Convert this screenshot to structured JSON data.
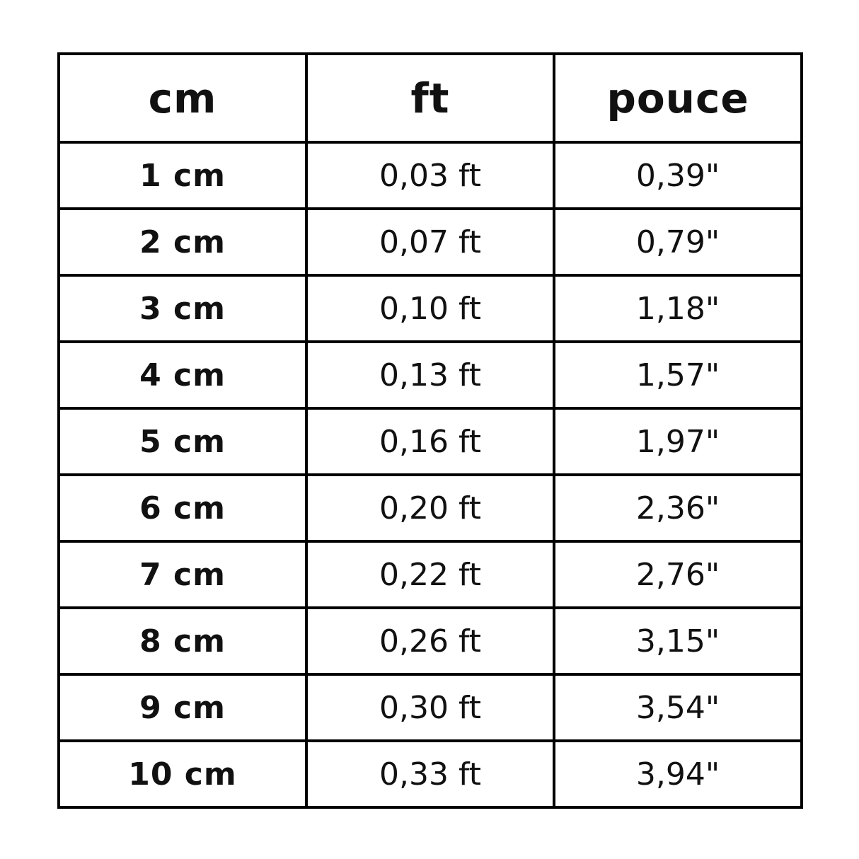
{
  "colors": {
    "background": "#ffffff",
    "border": "#000000",
    "text": "#111111"
  },
  "table": {
    "headers": [
      "cm",
      "ft",
      "pouce"
    ],
    "rows": [
      [
        "1 cm",
        "0,03 ft",
        "0,39\""
      ],
      [
        "2 cm",
        "0,07 ft",
        "0,79\""
      ],
      [
        "3 cm",
        "0,10 ft",
        "1,18\""
      ],
      [
        "4 cm",
        "0,13 ft",
        "1,57\""
      ],
      [
        "5 cm",
        "0,16 ft",
        "1,97\""
      ],
      [
        "6 cm",
        "0,20 ft",
        "2,36\""
      ],
      [
        "7 cm",
        "0,22 ft",
        "2,76\""
      ],
      [
        "8 cm",
        "0,26 ft",
        "3,15\""
      ],
      [
        "9 cm",
        "0,30 ft",
        "3,54\""
      ],
      [
        "10 cm",
        "0,33 ft",
        "3,94\""
      ]
    ]
  },
  "chart_data": {
    "type": "table",
    "title": "",
    "columns": [
      "cm",
      "ft",
      "pouce"
    ],
    "rows": [
      [
        "1 cm",
        "0,03 ft",
        "0,39\""
      ],
      [
        "2 cm",
        "0,07 ft",
        "0,79\""
      ],
      [
        "3 cm",
        "0,10 ft",
        "1,18\""
      ],
      [
        "4 cm",
        "0,13 ft",
        "1,57\""
      ],
      [
        "5 cm",
        "0,16 ft",
        "1,97\""
      ],
      [
        "6 cm",
        "0,20 ft",
        "2,36\""
      ],
      [
        "7 cm",
        "0,22 ft",
        "2,76\""
      ],
      [
        "8 cm",
        "0,26 ft",
        "3,15\""
      ],
      [
        "9 cm",
        "0,30 ft",
        "3,54\""
      ],
      [
        "10 cm",
        "0,33 ft",
        "3,94\""
      ]
    ],
    "cm_values": [
      1,
      2,
      3,
      4,
      5,
      6,
      7,
      8,
      9,
      10
    ],
    "ft_values": [
      0.03,
      0.07,
      0.1,
      0.13,
      0.16,
      0.2,
      0.22,
      0.26,
      0.3,
      0.33
    ],
    "pouce_values": [
      0.39,
      0.79,
      1.18,
      1.57,
      1.97,
      2.36,
      2.76,
      3.15,
      3.54,
      3.94
    ],
    "decimal_separator": ",",
    "grid": true,
    "legend": false
  }
}
